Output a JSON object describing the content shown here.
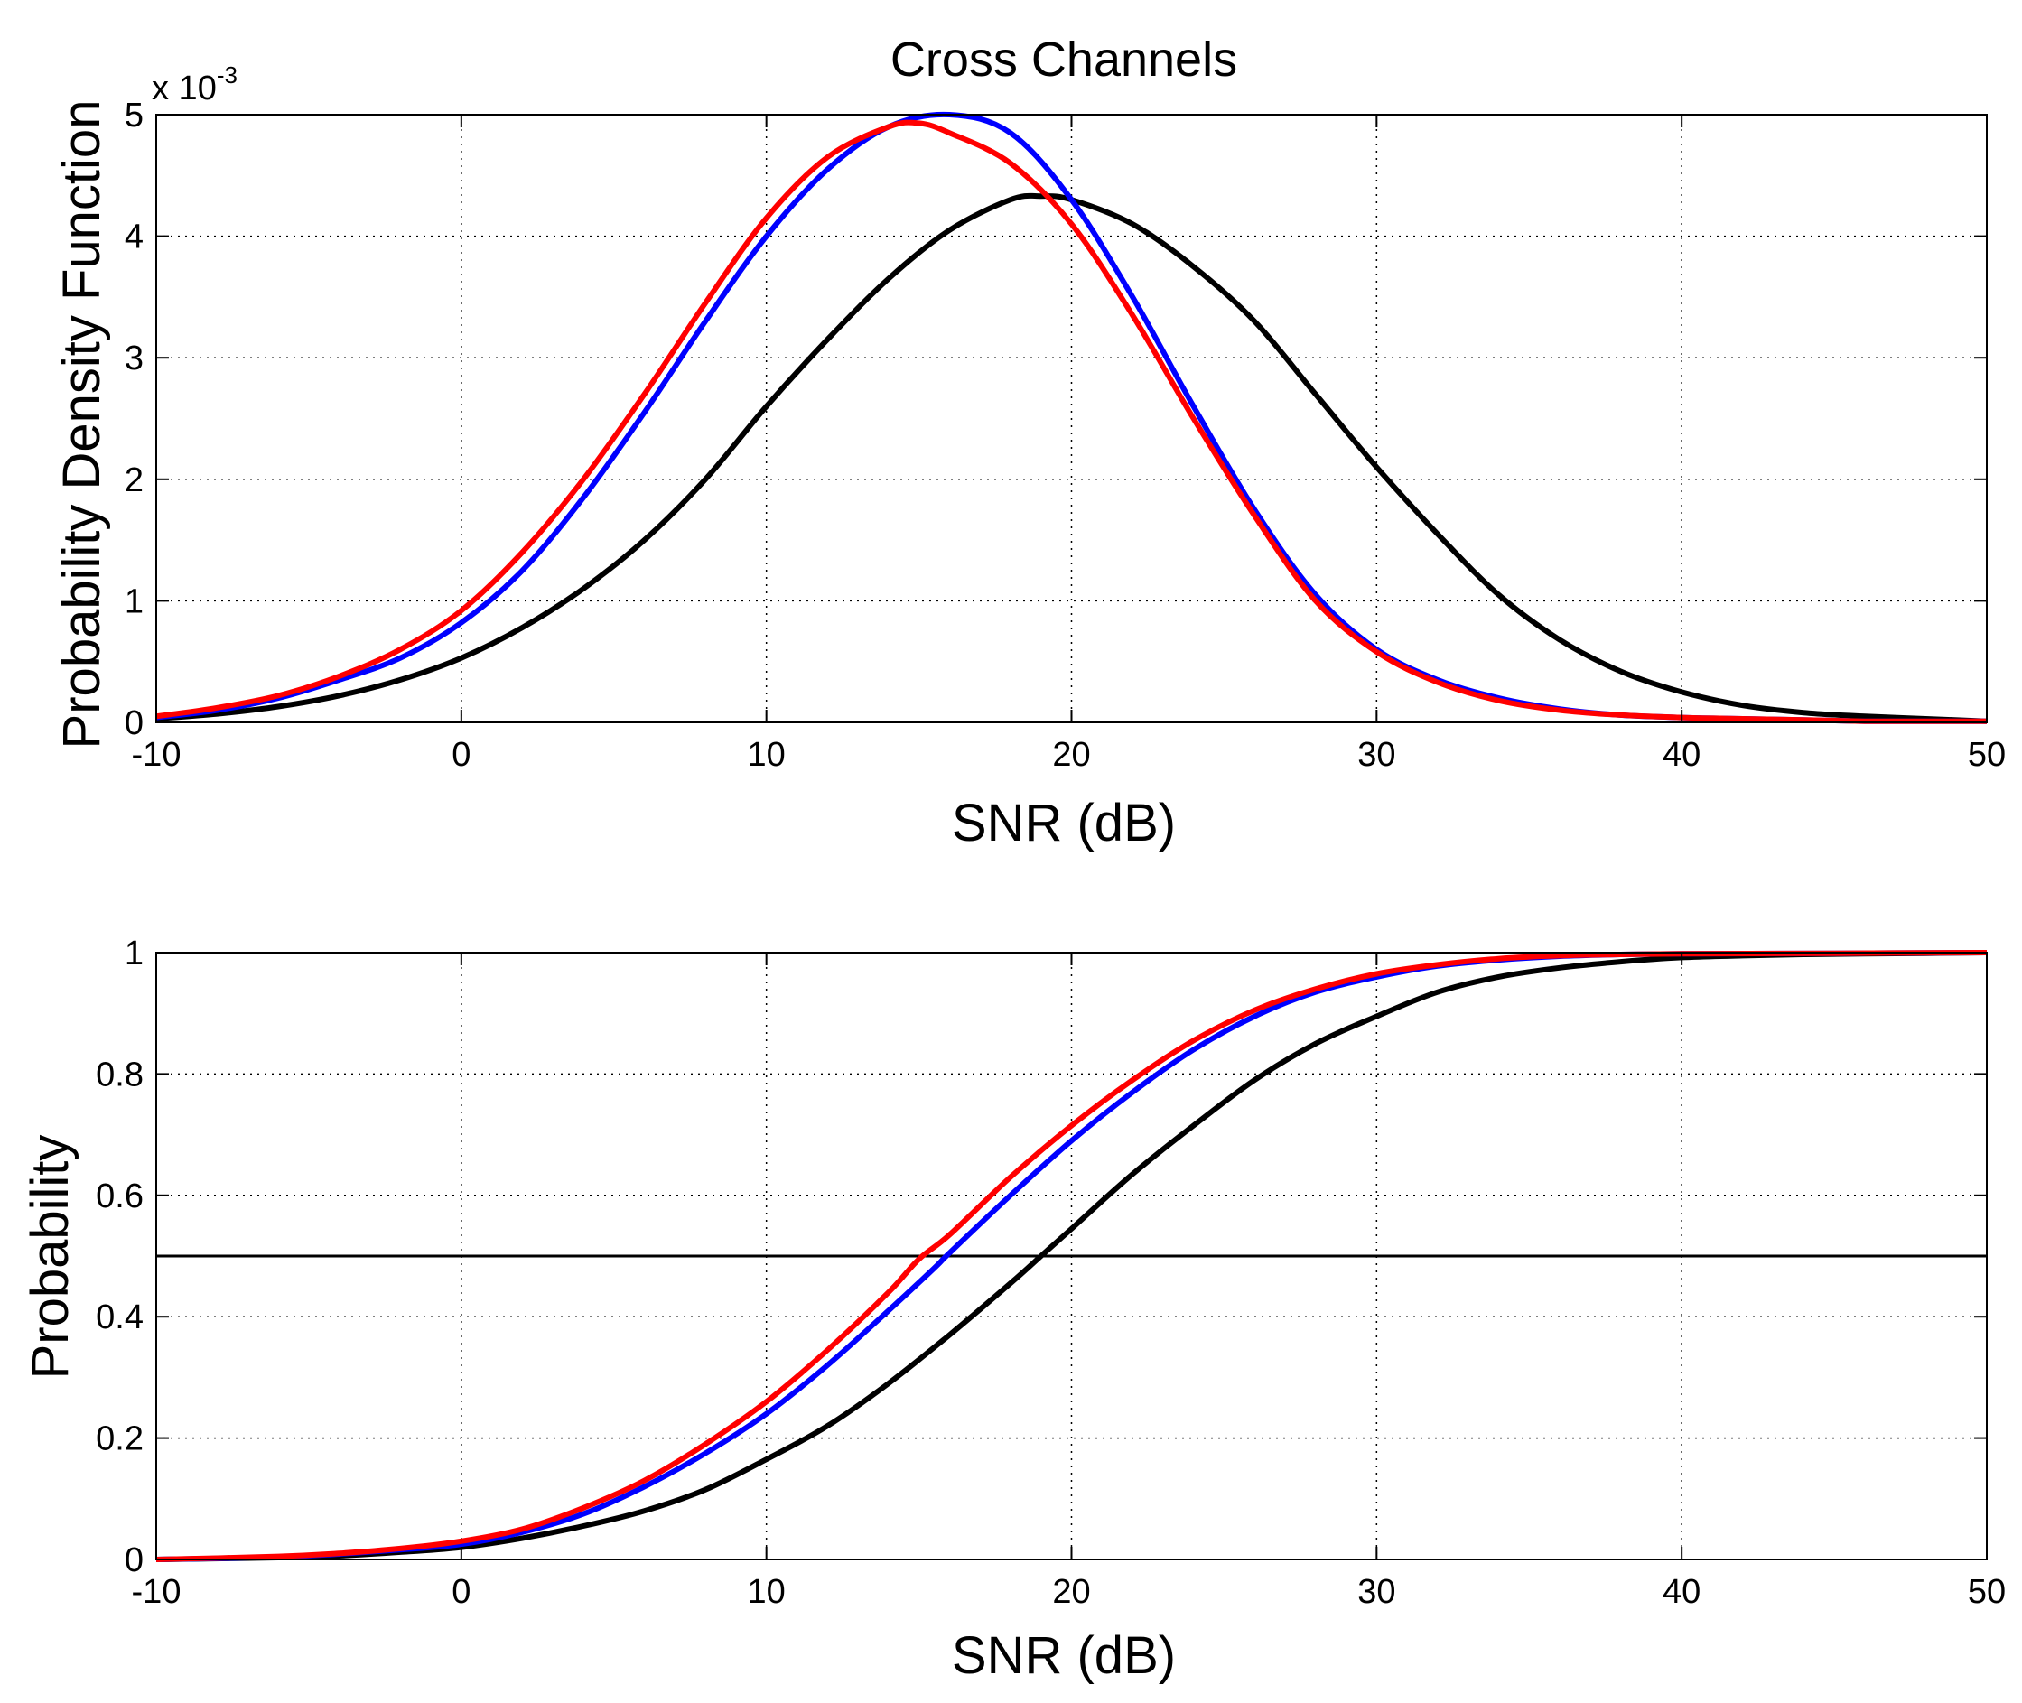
{
  "chart_data": [
    {
      "type": "line",
      "title": "Cross Channels",
      "xlabel": "SNR (dB)",
      "ylabel": "Probability Density Function",
      "y_exponent_label": "x 10",
      "y_exponent_power": "-3",
      "xlim": [
        -10,
        50
      ],
      "ylim": [
        0,
        5
      ],
      "y_scale": 0.001,
      "grid": true,
      "xticks": [
        -10,
        0,
        10,
        20,
        30,
        40,
        50
      ],
      "xtick_labels": [
        "-10",
        "0",
        "10",
        "20",
        "30",
        "40",
        "50"
      ],
      "yticks": [
        0,
        1,
        2,
        3,
        4,
        5
      ],
      "ytick_labels": [
        "0",
        "1",
        "2",
        "3",
        "4",
        "5"
      ],
      "series": [
        {
          "name": "black",
          "color": "#000000",
          "x": [
            -10,
            -8,
            -6,
            -4,
            -2,
            0,
            2,
            4,
            6,
            8,
            10,
            12,
            14,
            16,
            18,
            19,
            20,
            22,
            24,
            26,
            28,
            30,
            32,
            34,
            36,
            38,
            40,
            42,
            44,
            46,
            48,
            50
          ],
          "y": [
            0.03,
            0.07,
            0.13,
            0.22,
            0.35,
            0.53,
            0.78,
            1.1,
            1.5,
            2.0,
            2.6,
            3.15,
            3.65,
            4.05,
            4.3,
            4.33,
            4.3,
            4.1,
            3.75,
            3.3,
            2.7,
            2.1,
            1.55,
            1.05,
            0.68,
            0.42,
            0.25,
            0.14,
            0.08,
            0.05,
            0.03,
            0.01
          ]
        },
        {
          "name": "blue",
          "color": "#0000ff",
          "x": [
            -10,
            -8,
            -6,
            -4,
            -2,
            0,
            2,
            4,
            6,
            8,
            10,
            12,
            14,
            16,
            18,
            20,
            22,
            24,
            26,
            28,
            30,
            32,
            34,
            36,
            38,
            40,
            42,
            44,
            46,
            48,
            50
          ],
          "y": [
            0.04,
            0.1,
            0.2,
            0.35,
            0.53,
            0.82,
            1.25,
            1.85,
            2.55,
            3.3,
            4.0,
            4.55,
            4.9,
            5.0,
            4.85,
            4.3,
            3.5,
            2.6,
            1.75,
            1.05,
            0.6,
            0.35,
            0.2,
            0.11,
            0.06,
            0.04,
            0.03,
            0.02,
            0.01,
            0.01,
            0.01
          ]
        },
        {
          "name": "red",
          "color": "#ff0000",
          "x": [
            -10,
            -8,
            -6,
            -4,
            -2,
            0,
            2,
            4,
            6,
            8,
            10,
            12,
            14,
            15,
            16,
            18,
            20,
            22,
            24,
            26,
            28,
            30,
            32,
            34,
            36,
            38,
            40,
            42,
            44,
            46,
            48,
            50
          ],
          "y": [
            0.05,
            0.12,
            0.22,
            0.38,
            0.6,
            0.92,
            1.4,
            2.0,
            2.7,
            3.45,
            4.15,
            4.65,
            4.9,
            4.93,
            4.85,
            4.6,
            4.1,
            3.35,
            2.5,
            1.7,
            1.0,
            0.58,
            0.33,
            0.18,
            0.1,
            0.06,
            0.04,
            0.03,
            0.02,
            0.01,
            0.01,
            0.01
          ]
        }
      ]
    },
    {
      "type": "line",
      "title": "",
      "xlabel": "SNR (dB)",
      "ylabel": "Probability",
      "xlim": [
        -10,
        50
      ],
      "ylim": [
        0,
        1
      ],
      "grid": true,
      "xticks": [
        -10,
        0,
        10,
        20,
        30,
        40,
        50
      ],
      "xtick_labels": [
        "-10",
        "0",
        "10",
        "20",
        "30",
        "40",
        "50"
      ],
      "yticks": [
        0,
        0.2,
        0.4,
        0.6,
        0.8,
        1
      ],
      "ytick_labels": [
        "0",
        "0.2",
        "0.4",
        "0.6",
        "0.8",
        "1"
      ],
      "reference_line": {
        "y": 0.5,
        "color": "#000000"
      },
      "series": [
        {
          "name": "black",
          "color": "#000000",
          "x": [
            -10,
            -6,
            -4,
            -2,
            0,
            2,
            4,
            6,
            8,
            10,
            12,
            14,
            16,
            18,
            19,
            20,
            22,
            24,
            26,
            28,
            30,
            32,
            34,
            36,
            38,
            40,
            42,
            44,
            46,
            48,
            50
          ],
          "y": [
            0,
            0.003,
            0.006,
            0.012,
            0.02,
            0.035,
            0.055,
            0.08,
            0.115,
            0.165,
            0.22,
            0.29,
            0.37,
            0.455,
            0.5,
            0.545,
            0.635,
            0.715,
            0.79,
            0.85,
            0.895,
            0.935,
            0.96,
            0.975,
            0.985,
            0.992,
            0.995,
            0.997,
            0.998,
            0.999,
            1.0
          ]
        },
        {
          "name": "blue",
          "color": "#0000ff",
          "x": [
            -10,
            -6,
            -4,
            -2,
            0,
            2,
            4,
            6,
            8,
            10,
            12,
            14,
            15.5,
            16,
            18,
            20,
            22,
            24,
            26,
            28,
            30,
            32,
            34,
            36,
            38,
            40,
            45,
            50
          ],
          "y": [
            0,
            0.004,
            0.009,
            0.016,
            0.025,
            0.045,
            0.075,
            0.12,
            0.175,
            0.24,
            0.32,
            0.41,
            0.48,
            0.505,
            0.6,
            0.69,
            0.77,
            0.84,
            0.895,
            0.935,
            0.96,
            0.978,
            0.988,
            0.994,
            0.997,
            0.998,
            0.999,
            1.0
          ]
        },
        {
          "name": "red",
          "color": "#ff0000",
          "x": [
            -10,
            -6,
            -4,
            -2,
            0,
            2,
            4,
            6,
            8,
            10,
            12,
            14,
            15,
            16,
            18,
            20,
            22,
            24,
            26,
            28,
            30,
            32,
            34,
            36,
            38,
            40,
            45,
            50
          ],
          "y": [
            0,
            0.005,
            0.01,
            0.018,
            0.03,
            0.05,
            0.085,
            0.13,
            0.19,
            0.26,
            0.345,
            0.44,
            0.495,
            0.535,
            0.63,
            0.715,
            0.79,
            0.855,
            0.905,
            0.94,
            0.965,
            0.98,
            0.99,
            0.995,
            0.997,
            0.998,
            0.999,
            1.0
          ]
        }
      ]
    }
  ]
}
